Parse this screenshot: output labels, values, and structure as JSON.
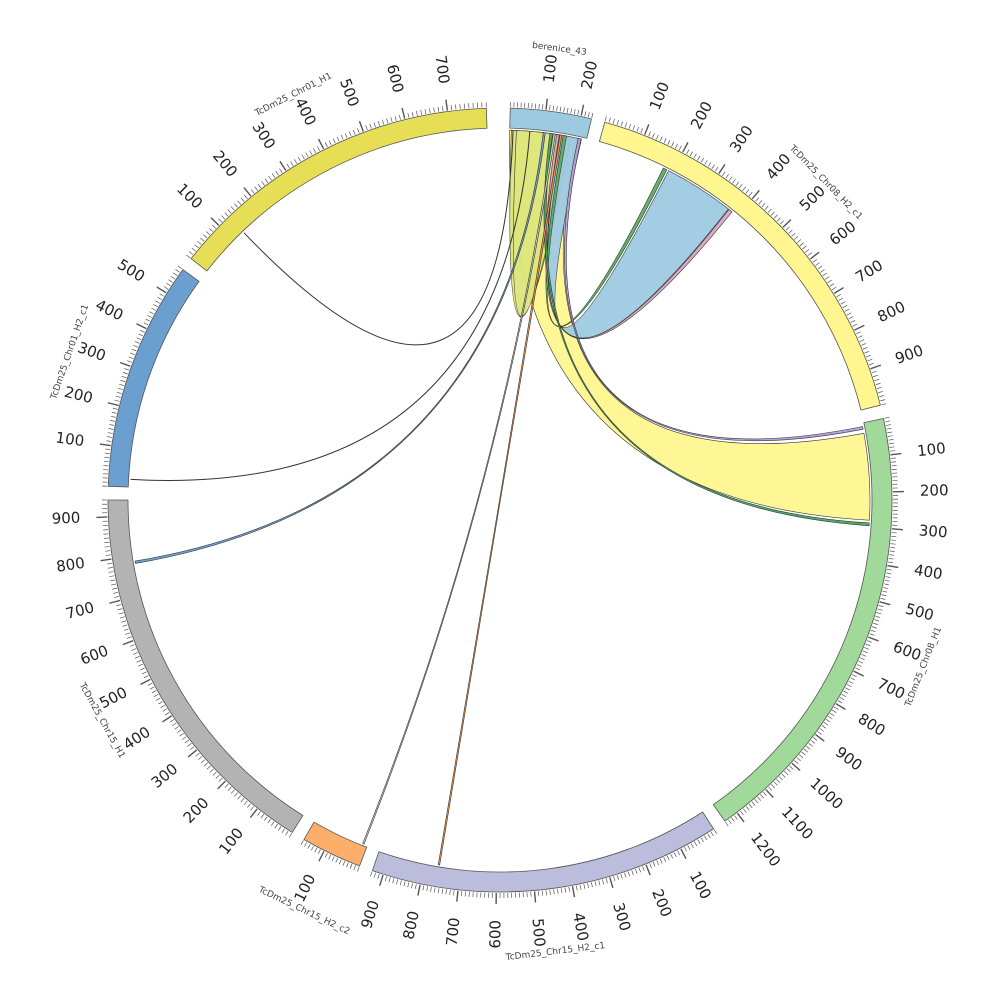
{
  "chart_data": {
    "type": "chord",
    "segments": [
      {
        "id": "berenice",
        "label": "berenice_43",
        "length": 230,
        "color": "#9ecae1",
        "ticks": [
          100,
          200
        ]
      },
      {
        "id": "chr08h2",
        "label": "TcDm25_Chr08_H2_c1",
        "length": 990,
        "color": "#fff68f",
        "ticks": [
          100,
          200,
          300,
          400,
          500,
          600,
          700,
          800,
          900
        ]
      },
      {
        "id": "chr08h1",
        "label": "TcDm25_Chr08_H1",
        "length": 1240,
        "color": "#a1d99b",
        "ticks": [
          100,
          200,
          300,
          400,
          500,
          600,
          700,
          800,
          900,
          1000,
          1100,
          1200
        ]
      },
      {
        "id": "chr15h2c1",
        "label": "TcDm25_Chr15_H2_c1",
        "length": 930,
        "color": "#bcbddc",
        "ticks": [
          100,
          200,
          300,
          400,
          500,
          600,
          700,
          800,
          900
        ]
      },
      {
        "id": "chr15h2c2",
        "label": "TcDm25_Chr15_H2_c2",
        "length": 160,
        "color": "#fdae6b",
        "ticks": [
          100
        ]
      },
      {
        "id": "chr15h1",
        "label": "TcDm25_Chr15_H1",
        "length": 940,
        "color": "#b3b3b3",
        "ticks": [
          100,
          200,
          300,
          400,
          500,
          600,
          700,
          800,
          900
        ]
      },
      {
        "id": "chr01h2",
        "label": "TcDm25_Chr01_H2_c1",
        "length": 570,
        "color": "#6a9fcf",
        "ticks": [
          100,
          200,
          300,
          400,
          500
        ]
      },
      {
        "id": "chr01h1",
        "label": "TcDm25_Chr01_H1",
        "length": 790,
        "color": "#e6df55",
        "ticks": [
          100,
          200,
          300,
          400,
          500,
          600,
          700
        ]
      }
    ],
    "links": [
      {
        "a": "berenice",
        "a_start": 0,
        "a_end": 200,
        "b": "chr08h1",
        "b_start": 30,
        "b_end": 280,
        "color": "#fff68f"
      },
      {
        "a": "berenice",
        "a_start": 5,
        "a_end": 180,
        "b": "berenice",
        "b_start": 20,
        "b_end": 185,
        "color": "#dce57a"
      },
      {
        "a": "chr08h2",
        "a_start": 190,
        "a_end": 370,
        "b": "berenice",
        "b_start": 150,
        "b_end": 215,
        "color": "#9ecae1"
      },
      {
        "a": "chr08h2",
        "a_start": 175,
        "a_end": 185,
        "b": "berenice",
        "b_start": 160,
        "b_end": 170,
        "color": "#5aae61"
      },
      {
        "a": "chr08h2",
        "a_start": 372,
        "a_end": 382,
        "b": "berenice",
        "b_start": 140,
        "b_end": 148,
        "color": "#d8a7c0"
      },
      {
        "a": "berenice",
        "a_start": 205,
        "a_end": 214,
        "b": "chr08h1",
        "b_start": 10,
        "b_end": 18,
        "color": "#b39ddb"
      },
      {
        "a": "berenice",
        "a_start": 120,
        "a_end": 128,
        "b": "chr08h1",
        "b_start": 288,
        "b_end": 296,
        "color": "#41ab5d"
      },
      {
        "a": "berenice",
        "a_start": 100,
        "a_end": 106,
        "b": "chr15h1",
        "b_start": 780,
        "b_end": 786,
        "color": "#6a9fcf"
      },
      {
        "a": "berenice",
        "a_start": 130,
        "a_end": 136,
        "b": "chr15h2c2",
        "b_start": 10,
        "b_end": 14,
        "color": "#cccccc"
      },
      {
        "a": "berenice",
        "a_start": 150,
        "a_end": 156,
        "b": "chr15h2c1",
        "b_start": 758,
        "b_end": 762,
        "color": "#fd8d3c"
      },
      {
        "a": "chr01h1",
        "a_start": 130,
        "a_end": 131,
        "b": "berenice",
        "b_start": 10,
        "b_end": 11,
        "color": "none"
      },
      {
        "a": "chr01h2",
        "a_start": 20,
        "a_end": 21,
        "b": "berenice",
        "b_start": 60,
        "b_end": 61,
        "color": "none"
      }
    ]
  }
}
